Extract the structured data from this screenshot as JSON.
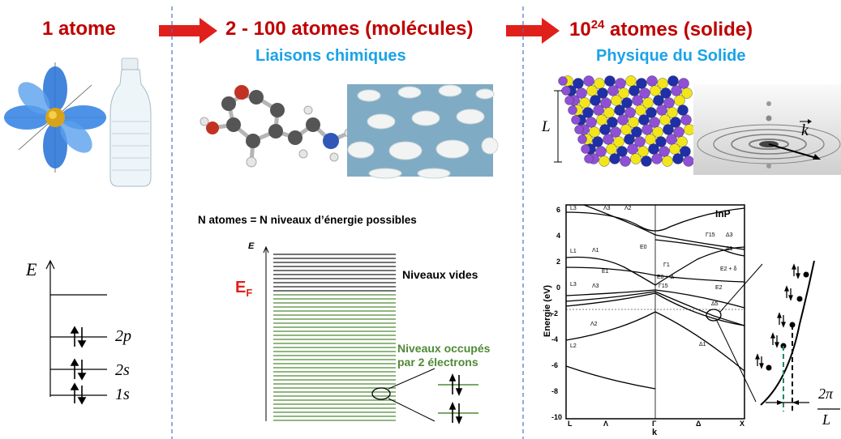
{
  "columns": {
    "atom": {
      "title": "1 atome"
    },
    "molecules": {
      "title": "2 - 100 atomes (molécules)",
      "subtitle": "Liaisons chimiques"
    },
    "solid": {
      "title_base": "10",
      "title_exp": "24",
      "title_rest": " atomes (solide)",
      "subtitle": "Physique du Solide"
    }
  },
  "atom_levels": {
    "axis": "E",
    "levels": [
      "2p",
      "2s",
      "1s"
    ]
  },
  "molecule_levels": {
    "caption": "N atomes = N niveaux d’énergie possibles",
    "axis": "E",
    "fermi_base": "E",
    "fermi_sub": "F",
    "empty_label": "Niveaux vides",
    "occupied_label_1": "Niveaux occupés",
    "occupied_label_2": "par 2 électrons"
  },
  "crystal": {
    "size_label": "L"
  },
  "ripple": {
    "wave_label": "k"
  },
  "band_structure": {
    "material": "InP",
    "ylabel": "Energie (eV)",
    "xlabel": "k",
    "yticks": [
      "6",
      "4",
      "2",
      "0",
      "-2",
      "-4",
      "-6",
      "-8",
      "-10"
    ],
    "xticks": [
      "L",
      "Λ",
      "Γ",
      "Δ",
      "X"
    ],
    "labels": [
      "L3",
      "Λ3",
      "Λ2",
      "L1",
      "Λ1",
      "E1",
      "E0",
      "Γ15",
      "Γ1",
      "Δ3",
      "Δ1",
      "L3",
      "Λ3",
      "E0 + Δ",
      "Γ15",
      "Λ2",
      "L2",
      "Δ1",
      "Δ5",
      "E2 + δ",
      "E2"
    ]
  },
  "zoom": {
    "num": "2π",
    "den": "L"
  },
  "colors": {
    "title": "#c00000",
    "subtitle": "#1aa3e8",
    "occupied": "#4e8a35",
    "arrow": "#e0201a",
    "divider": "#4a72c4"
  }
}
